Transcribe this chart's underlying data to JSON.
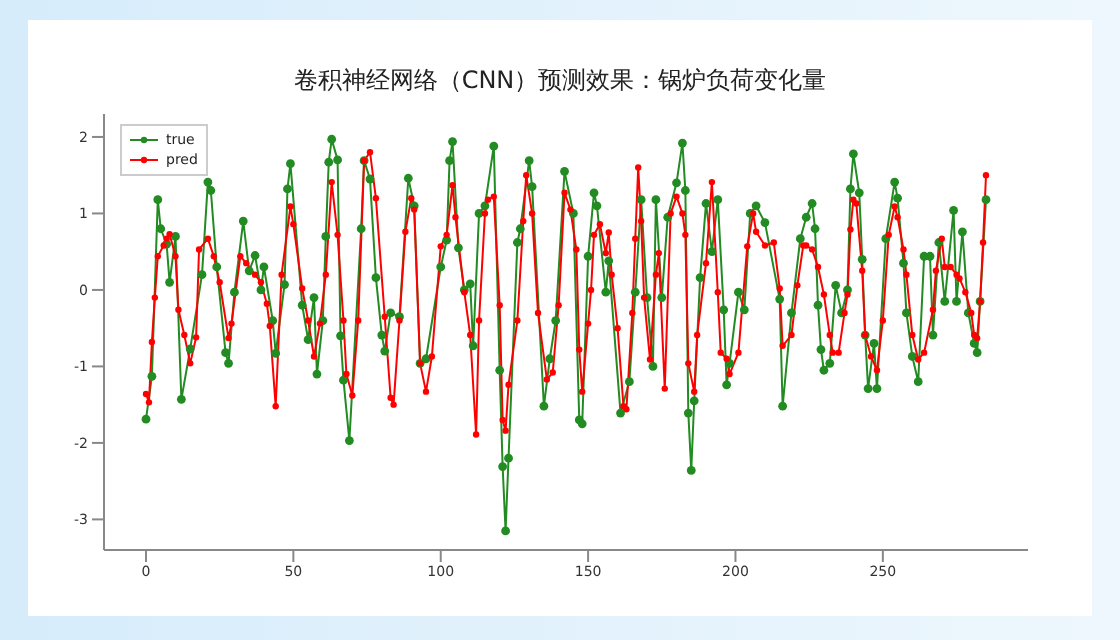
{
  "chart_data": {
    "type": "line",
    "title": "卷积神经网络（CNN）预测效果：锅炉负荷变化量",
    "series": [
      {
        "name": "true",
        "color": "#228b22",
        "x": [
          0,
          2,
          4,
          5,
          7,
          8,
          10,
          12,
          15,
          19,
          21,
          22,
          24,
          27,
          28,
          30,
          33,
          35,
          37,
          39,
          40,
          43,
          44,
          47,
          48,
          49,
          53,
          55,
          57,
          58,
          60,
          61,
          62,
          63,
          65,
          66,
          67,
          69,
          73,
          74,
          76,
          78,
          80,
          81,
          83,
          86,
          89,
          91,
          93,
          95,
          100,
          102,
          103,
          104,
          106,
          108,
          110,
          111,
          113,
          115,
          118,
          120,
          121,
          122,
          123,
          126,
          127,
          130,
          131,
          135,
          137,
          139,
          142,
          145,
          147,
          148,
          150,
          152,
          153,
          156,
          157,
          161,
          164,
          166,
          168,
          170,
          172,
          173,
          175,
          177,
          180,
          182,
          183,
          184,
          185,
          186,
          188,
          190,
          192,
          194,
          196,
          197,
          198,
          201,
          203,
          205,
          207,
          210,
          215,
          216,
          219,
          222,
          224,
          226,
          227,
          228,
          229,
          230,
          232,
          234,
          236,
          238,
          239,
          240,
          242,
          243,
          244,
          245,
          247,
          248,
          251,
          254,
          255,
          257,
          258,
          260,
          262,
          264,
          266,
          267,
          269,
          271,
          274,
          275,
          277,
          279,
          281,
          282,
          283,
          285
        ],
        "values": [
          -1.69,
          -1.13,
          1.18,
          0.8,
          0.6,
          0.1,
          0.7,
          -1.43,
          -0.77,
          0.2,
          1.41,
          1.3,
          0.3,
          -0.82,
          -0.96,
          -0.03,
          0.9,
          0.25,
          0.45,
          0,
          0.3,
          -0.4,
          -0.83,
          0.07,
          1.32,
          1.65,
          -0.2,
          -0.65,
          -0.1,
          -1.1,
          -0.4,
          0.7,
          1.67,
          1.97,
          1.7,
          -0.6,
          -1.18,
          -1.97,
          0.8,
          1.69,
          1.45,
          0.16,
          -0.59,
          -0.8,
          -0.3,
          -0.35,
          1.46,
          1.1,
          -0.96,
          -0.9,
          0.3,
          0.65,
          1.69,
          1.94,
          0.55,
          0,
          0.08,
          -0.73,
          1.0,
          1.1,
          1.88,
          -1.05,
          -2.31,
          -3.15,
          -2.2,
          0.62,
          0.8,
          1.69,
          1.35,
          -1.52,
          -0.9,
          -0.4,
          1.55,
          1.0,
          -1.7,
          -1.75,
          0.44,
          1.27,
          1.1,
          -0.03,
          0.38,
          -1.61,
          -1.2,
          -0.03,
          1.18,
          -0.1,
          -1.0,
          1.18,
          -0.1,
          0.95,
          1.4,
          1.92,
          1.3,
          -1.61,
          -2.36,
          -1.45,
          0.16,
          1.13,
          0.5,
          1.18,
          -0.26,
          -1.24,
          -0.96,
          -0.03,
          -0.26,
          1.0,
          1.1,
          0.88,
          -0.12,
          -1.52,
          -0.3,
          0.67,
          0.95,
          1.13,
          0.8,
          -0.2,
          -0.78,
          -1.05,
          -0.96,
          0.06,
          -0.3,
          0,
          1.32,
          1.78,
          1.27,
          0.4,
          -0.59,
          -1.29,
          -0.7,
          -1.29,
          0.67,
          1.41,
          1.2,
          0.35,
          -0.3,
          -0.87,
          -1.2,
          0.44,
          0.44,
          -0.59,
          0.62,
          -0.15,
          1.04,
          -0.15,
          0.76,
          -0.3,
          -0.7,
          -0.82,
          -0.15,
          1.18
        ]
      },
      {
        "name": "pred",
        "color": "#ff0000",
        "x": [
          0,
          1,
          2,
          3,
          4,
          6,
          7,
          8,
          10,
          11,
          13,
          15,
          17,
          18,
          21,
          23,
          25,
          28,
          29,
          32,
          34,
          37,
          39,
          41,
          42,
          44,
          46,
          49,
          50,
          53,
          55,
          57,
          59,
          61,
          63,
          65,
          67,
          68,
          70,
          72,
          74,
          76,
          78,
          81,
          83,
          84,
          86,
          88,
          90,
          91,
          93,
          95,
          97,
          100,
          102,
          104,
          105,
          108,
          110,
          112,
          113,
          115,
          116,
          118,
          120,
          121,
          122,
          123,
          126,
          128,
          129,
          131,
          133,
          136,
          138,
          140,
          142,
          144,
          146,
          147,
          148,
          150,
          151,
          152,
          154,
          156,
          157,
          158,
          160,
          162,
          163,
          165,
          166,
          167,
          168,
          169,
          171,
          173,
          174,
          176,
          178,
          180,
          182,
          183,
          184,
          186,
          187,
          190,
          192,
          194,
          195,
          197,
          198,
          201,
          204,
          206,
          207,
          210,
          213,
          215,
          216,
          219,
          221,
          223,
          224,
          226,
          228,
          230,
          232,
          233,
          235,
          237,
          238,
          239,
          240,
          241,
          243,
          244,
          246,
          248,
          250,
          252,
          254,
          255,
          257,
          258,
          260,
          262,
          264,
          267,
          268,
          270,
          271,
          273,
          275,
          276,
          278,
          280,
          281,
          282,
          283,
          284,
          285
        ],
        "values": [
          -1.36,
          -1.47,
          -0.68,
          -0.1,
          0.44,
          0.58,
          0.67,
          0.73,
          0.44,
          -0.26,
          -0.59,
          -0.96,
          -0.62,
          0.53,
          0.67,
          0.44,
          0.1,
          -0.63,
          -0.44,
          0.44,
          0.35,
          0.2,
          0.1,
          -0.18,
          -0.47,
          -1.52,
          0.2,
          1.09,
          0.86,
          0.02,
          -0.4,
          -0.87,
          -0.44,
          0.2,
          1.41,
          0.72,
          -0.4,
          -1.1,
          -1.38,
          -0.4,
          1.69,
          1.8,
          1.2,
          -0.35,
          -1.41,
          -1.5,
          -0.4,
          0.76,
          1.2,
          1.05,
          -0.96,
          -1.33,
          -0.87,
          0.57,
          0.72,
          1.37,
          0.95,
          -0.03,
          -0.59,
          -1.89,
          -0.4,
          1.0,
          1.18,
          1.22,
          -0.2,
          -1.7,
          -1.84,
          -1.24,
          -0.4,
          0.9,
          1.5,
          1.0,
          -0.3,
          -1.17,
          -1.08,
          -0.2,
          1.27,
          1.05,
          0.53,
          -0.78,
          -1.33,
          -0.44,
          0,
          0.72,
          0.86,
          0.48,
          0.75,
          0.2,
          -0.5,
          -1.52,
          -1.56,
          -0.3,
          0.67,
          1.6,
          0.9,
          -0.1,
          -0.91,
          0.2,
          0.48,
          -1.29,
          1.0,
          1.22,
          1.0,
          0.72,
          -0.96,
          -1.33,
          -0.59,
          0.35,
          1.41,
          -0.03,
          -0.82,
          -0.9,
          -1.1,
          -0.82,
          0.57,
          1.0,
          0.76,
          0.58,
          0.62,
          0.02,
          -0.73,
          -0.59,
          0.06,
          0.58,
          0.58,
          0.53,
          0.3,
          -0.06,
          -0.59,
          -0.82,
          -0.82,
          -0.3,
          -0.06,
          0.79,
          1.18,
          1.13,
          0.25,
          -0.59,
          -0.87,
          -1.05,
          -0.4,
          0.72,
          1.09,
          0.95,
          0.53,
          0.2,
          -0.59,
          -0.91,
          -0.82,
          -0.26,
          0.25,
          0.67,
          0.3,
          0.3,
          0.2,
          0.15,
          -0.03,
          -0.3,
          -0.59,
          -0.63,
          -0.15,
          0.62,
          1.5
        ]
      }
    ],
    "xlim": [
      -14.25,
      299.25
    ],
    "ylim": [
      -3.4,
      2.3
    ],
    "xticks": [
      0,
      50,
      100,
      150,
      200,
      250
    ],
    "yticks": [
      -3,
      -2,
      -1,
      0,
      1,
      2
    ],
    "grid": false,
    "legend": "top left",
    "marker": "circle",
    "line_style": "solid"
  }
}
